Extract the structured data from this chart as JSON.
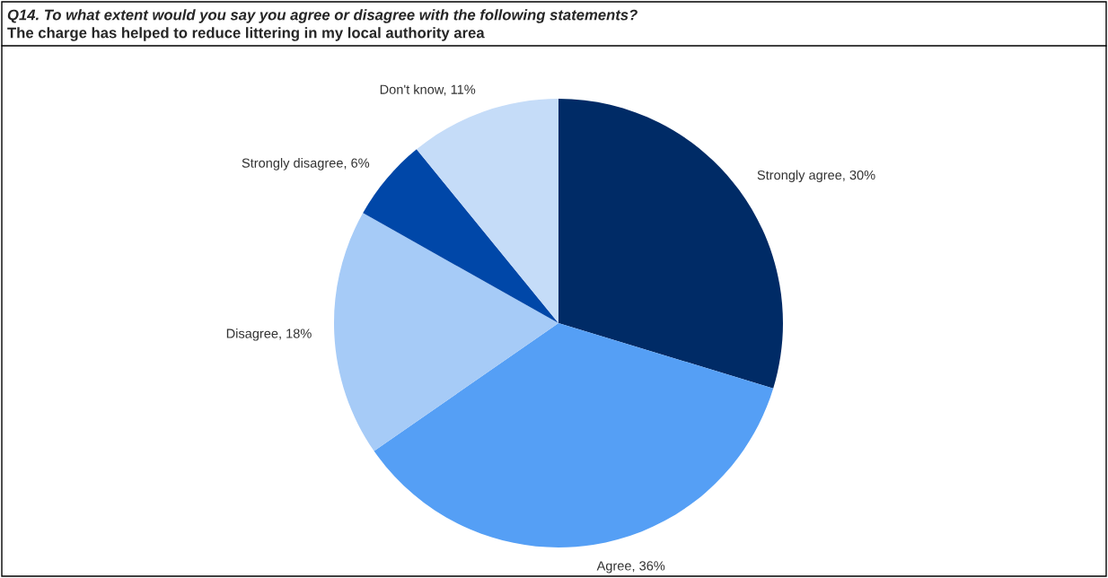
{
  "chart_data": {
    "type": "pie",
    "title": "Q14. To what extent would you say you agree or disagree with the following statements?",
    "subtitle": "The charge has helped to reduce littering in my local authority area",
    "categories": [
      "Strongly agree",
      "Agree",
      "Disagree",
      "Strongly disagree",
      "Don't know"
    ],
    "values": [
      30,
      36,
      18,
      6,
      11
    ],
    "value_labels": [
      "30%",
      "36%",
      "18%",
      "6%",
      "11%"
    ],
    "colors": [
      "#002b66",
      "#559ff5",
      "#a6cbf7",
      "#0047a8",
      "#c5dcf8"
    ],
    "legend": false
  }
}
